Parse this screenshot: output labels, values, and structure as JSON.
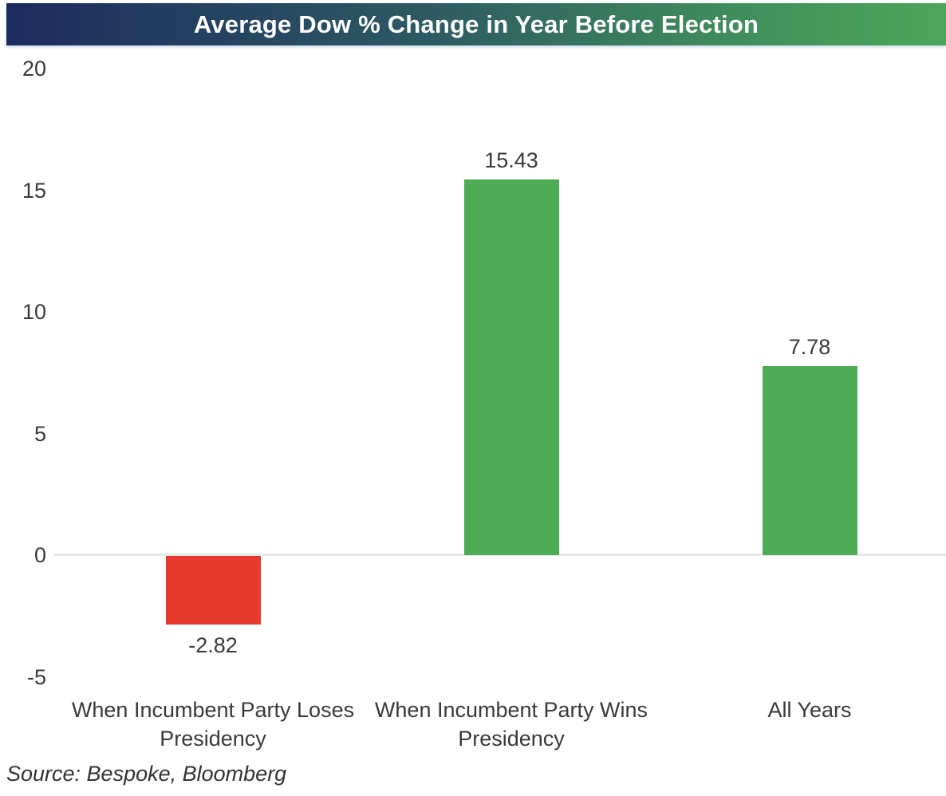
{
  "title": "Average Dow % Change in Year Before Election",
  "source_note": "Source: Bespoke, Bloomberg",
  "colors": {
    "title_gradient_start": "#1d2b5e",
    "title_gradient_mid": "#2d5a62",
    "title_gradient_end": "#4ca65a",
    "title_text": "#ffffff",
    "positive_bar": "#4dac55",
    "negative_bar": "#e63a2e",
    "zero_line": "#e9e9e9",
    "label_text": "#3a3a3a"
  },
  "chart_data": {
    "type": "bar",
    "title": "Average Dow % Change in Year Before Election",
    "categories": [
      "When Incumbent Party Loses Presidency",
      "When Incumbent Party Wins Presidency",
      "All Years"
    ],
    "values": [
      -2.82,
      15.43,
      7.78
    ],
    "value_labels": [
      "-2.82",
      "15.43",
      "7.78"
    ],
    "bar_colors": [
      "#e63a2e",
      "#4dac55",
      "#4dac55"
    ],
    "xlabel": "",
    "ylabel": "",
    "yticks": [
      20,
      15,
      10,
      5,
      0,
      -5
    ],
    "ylim": [
      -5,
      20
    ],
    "grid": "zero-line-only",
    "legend": "none",
    "source": "Source: Bespoke, Bloomberg"
  }
}
